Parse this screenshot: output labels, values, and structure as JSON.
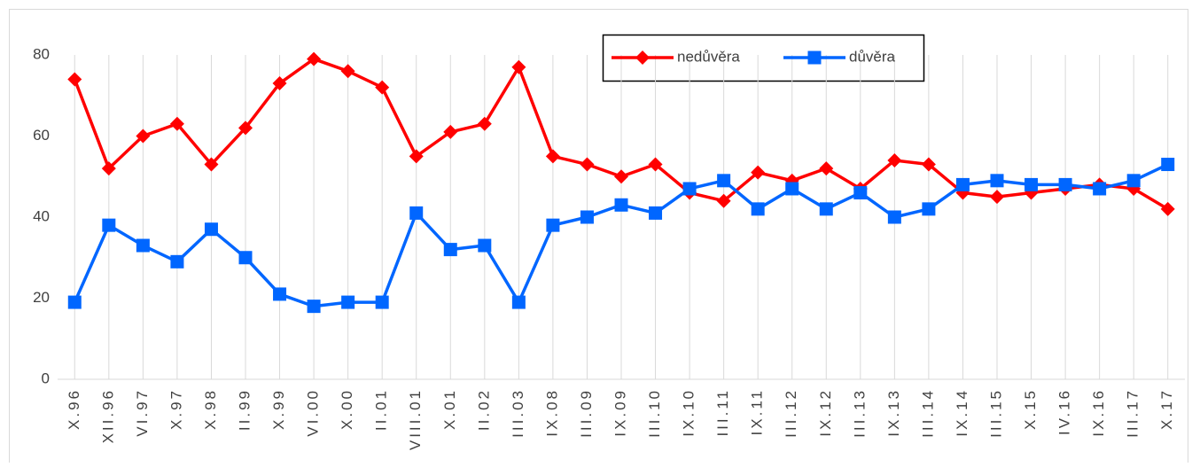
{
  "chart_data": {
    "type": "line",
    "categories": [
      "X.96",
      "XII.96",
      "VI.97",
      "X.97",
      "X.98",
      "II.99",
      "X.99",
      "VI.00",
      "X.00",
      "II.01",
      "VIII.01",
      "X.01",
      "II.02",
      "III.03",
      "IX.08",
      "III.09",
      "IX.09",
      "III.10",
      "IX.10",
      "III.11",
      "IX.11",
      "III.12",
      "IX.12",
      "III.13",
      "IX.13",
      "III.14",
      "IX.14",
      "III.15",
      "X.15",
      "IV.16",
      "IX.16",
      "III.17",
      "X.17"
    ],
    "series": [
      {
        "name": "nedůvěra",
        "color": "#ff0000",
        "marker": "diamond",
        "values": [
          74,
          52,
          60,
          63,
          53,
          62,
          73,
          79,
          76,
          72,
          55,
          61,
          63,
          77,
          55,
          53,
          50,
          53,
          46,
          44,
          51,
          49,
          52,
          47,
          54,
          53,
          46,
          45,
          46,
          47,
          48,
          47,
          42
        ]
      },
      {
        "name": "důvěra",
        "color": "#0066ff",
        "marker": "square",
        "values": [
          19,
          38,
          33,
          29,
          37,
          30,
          21,
          18,
          19,
          19,
          41,
          32,
          33,
          19,
          38,
          40,
          43,
          41,
          47,
          49,
          42,
          47,
          42,
          46,
          40,
          42,
          48,
          49,
          48,
          48,
          47,
          49,
          53
        ]
      }
    ],
    "ylim": [
      0,
      80
    ],
    "yticks": [
      0,
      20,
      40,
      60,
      80
    ],
    "grid": true
  }
}
